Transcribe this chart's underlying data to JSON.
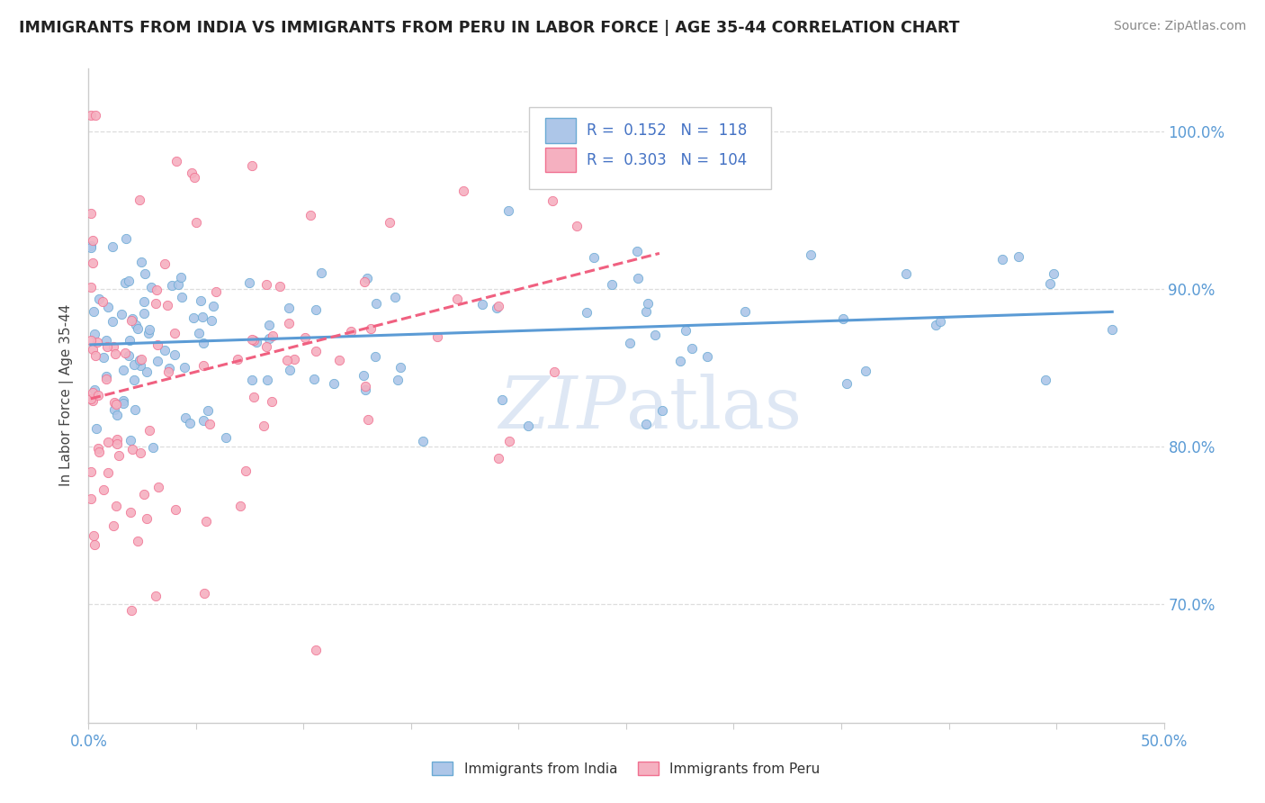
{
  "title": "IMMIGRANTS FROM INDIA VS IMMIGRANTS FROM PERU IN LABOR FORCE | AGE 35-44 CORRELATION CHART",
  "source": "Source: ZipAtlas.com",
  "ylabel": "In Labor Force | Age 35-44",
  "x_min": 0.0,
  "x_max": 0.5,
  "y_min": 0.625,
  "y_max": 1.04,
  "india_R": 0.152,
  "india_N": 118,
  "peru_R": 0.303,
  "peru_N": 104,
  "india_color": "#adc6e8",
  "peru_color": "#f5b0c0",
  "india_edge_color": "#6aaad4",
  "peru_edge_color": "#f07090",
  "india_line_color": "#5b9bd5",
  "peru_line_color": "#f06080",
  "legend_color": "#4472c4",
  "watermark_color": "#c8d8ed",
  "right_tick_color": "#5b9bd5",
  "bottom_tick_color": "#5b9bd5"
}
